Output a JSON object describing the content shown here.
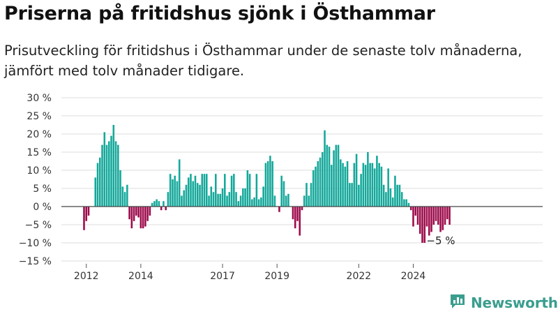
{
  "title": "Priserna på fritidshus sjönk i Östhammar",
  "subtitle": "Prisutveckling för fritidshus i Östhammar under de senaste tolv månaderna, jämfört med tolv månader tidigare.",
  "brand": {
    "name": "Newsworthy",
    "icon": "bar-chart-logo-icon"
  },
  "colors": {
    "positive": "#14a89a",
    "negative": "#9c0a4a",
    "zero_line": "#444444",
    "grid": "#dddddd"
  },
  "end_label": "−5 %",
  "chart_data": {
    "type": "bar",
    "title": "Priserna på fritidshus sjönk i Östhammar",
    "ylabel": "",
    "xlabel": "",
    "ylim": [
      -15,
      30
    ],
    "y_ticks": [
      30,
      25,
      20,
      15,
      10,
      5,
      0,
      -5,
      -10,
      -15
    ],
    "y_tick_labels": [
      "30 %",
      "25 %",
      "20 %",
      "15 %",
      "10 %",
      "5 %",
      "0 %",
      "−5 %",
      "−10 %",
      "−15 %"
    ],
    "x_ticks": [
      {
        "label": "2012",
        "year": 2012,
        "month": 1
      },
      {
        "label": "2014",
        "year": 2014,
        "month": 1
      },
      {
        "label": "2017",
        "year": 2017,
        "month": 1
      },
      {
        "label": "2019",
        "year": 2019,
        "month": 1
      },
      {
        "label": "2022",
        "year": 2022,
        "month": 1
      },
      {
        "label": "2024",
        "year": 2024,
        "month": 1
      }
    ],
    "x_start": {
      "year": 2011,
      "month": 12
    },
    "values": [
      -6.5,
      -4.0,
      -2.5,
      0,
      0,
      8.0,
      12.0,
      13.5,
      17.0,
      20.5,
      17.0,
      18.0,
      19.5,
      22.5,
      18.0,
      17.0,
      10.0,
      5.5,
      4.0,
      6.0,
      -3.5,
      -6.0,
      -4.0,
      -2.5,
      -3.0,
      -6.0,
      -6.0,
      -5.5,
      -4.0,
      -2.5,
      1.0,
      1.5,
      2.0,
      1.5,
      -1.0,
      1.5,
      -1.0,
      4.0,
      9.0,
      7.5,
      8.5,
      7.0,
      13.0,
      3.0,
      4.5,
      6.0,
      8.0,
      9.0,
      7.0,
      8.5,
      6.5,
      6.0,
      9.0,
      9.0,
      9.0,
      3.0,
      5.5,
      4.0,
      9.0,
      3.5,
      3.5,
      5.0,
      9.0,
      3.0,
      4.0,
      8.5,
      9.0,
      4.0,
      1.5,
      3.0,
      5.0,
      5.0,
      10.0,
      9.0,
      2.0,
      2.5,
      9.0,
      2.0,
      2.5,
      5.5,
      12.0,
      12.5,
      14.0,
      12.5,
      3.0,
      0,
      -1.5,
      8.5,
      7.0,
      3.0,
      3.5,
      0,
      -3.5,
      -6.0,
      -4.0,
      -8.0,
      -1.0,
      3.0,
      6.5,
      3.0,
      6.5,
      10.0,
      11.0,
      12.5,
      13.5,
      15.0,
      21.0,
      17.0,
      16.5,
      11.5,
      15.5,
      17.0,
      17.0,
      13.0,
      12.0,
      11.0,
      12.5,
      6.5,
      6.5,
      12.0,
      14.5,
      6.0,
      9.0,
      12.0,
      11.5,
      15.0,
      12.0,
      12.0,
      10.5,
      14.0,
      12.0,
      11.0,
      6.0,
      4.0,
      10.5,
      5.0,
      2.5,
      8.5,
      6.0,
      6.0,
      4.0,
      2.0,
      2.0,
      1.0,
      -1.0,
      -5.5,
      -2.5,
      -5.0,
      -7.5,
      -10.0,
      -10.0,
      -5.5,
      -8.0,
      -7.0,
      -5.0,
      -4.0,
      -5.0,
      -7.0,
      -6.5,
      -5.0,
      -3.5,
      -5.0
    ]
  }
}
